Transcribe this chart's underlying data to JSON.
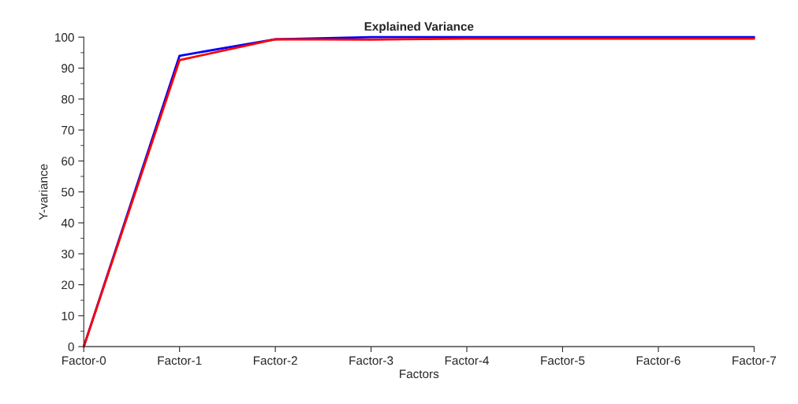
{
  "chart_data": {
    "type": "line",
    "title": "Explained Variance",
    "xlabel": "Factors",
    "ylabel": "Y-variance",
    "categories": [
      "Factor-0",
      "Factor-1",
      "Factor-2",
      "Factor-3",
      "Factor-4",
      "Factor-5",
      "Factor-6",
      "Factor-7"
    ],
    "series": [
      {
        "color": "#0000ff",
        "values": [
          0,
          94,
          99.3,
          100,
          100,
          100,
          100,
          100
        ]
      },
      {
        "color": "#ff0000",
        "values": [
          0,
          92.6,
          99.3,
          99.2,
          99.5,
          99.5,
          99.5,
          99.5
        ]
      }
    ],
    "ylim": [
      0,
      100
    ],
    "yticks": [
      0,
      10,
      20,
      30,
      40,
      50,
      60,
      70,
      80,
      90,
      100
    ],
    "grid": false,
    "marker": "none",
    "line_style": "solid"
  }
}
